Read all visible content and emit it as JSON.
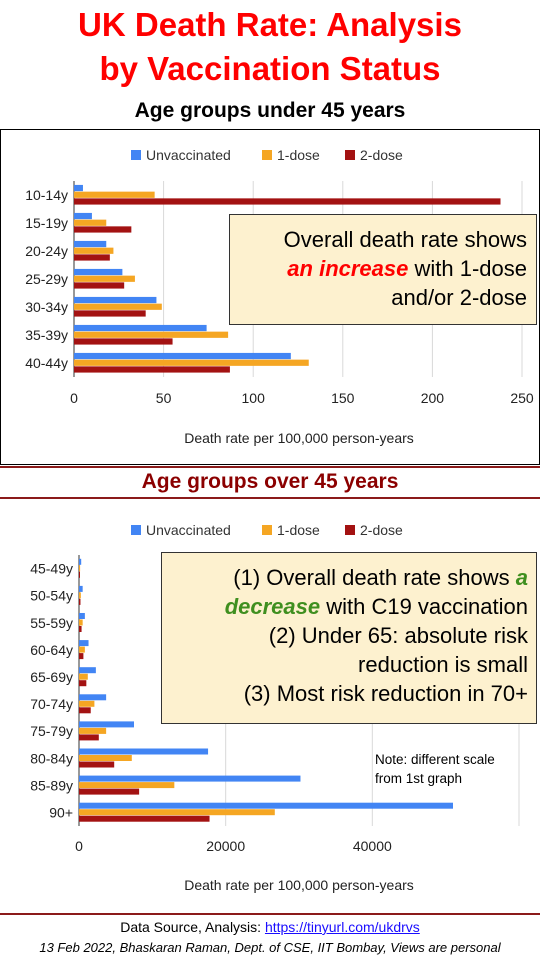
{
  "title": {
    "line1": "UK Death Rate: Analysis",
    "line2": "by Vaccination Status"
  },
  "colors": {
    "unvaccinated": "#4285f4",
    "dose1": "#f5a623",
    "dose2": "#a31212",
    "title": "#ff0000",
    "callout_bg": "#fdf1cf"
  },
  "callout1": {
    "line1": "Overall death rate shows",
    "emph": "an increase",
    "line2_rest": " with 1-dose",
    "line3": "and/or 2-dose"
  },
  "callout2": {
    "line1_pre": "(1) Overall death rate shows ",
    "emph_a": "a",
    "emph_b": "decrease",
    "line2_rest": " with C19 vaccination",
    "line3": "(2) Under 65: absolute risk",
    "line4": "reduction is small",
    "line5": "(3) Most risk reduction in 70+"
  },
  "note": {
    "line1": "Note: different scale",
    "line2": "from 1st graph"
  },
  "footer": {
    "source_label": "Data Source, Analysis: ",
    "source_link": "https://tinyurl.com/ukdrvs",
    "credit": "13 Feb 2022, Bhaskaran Raman, Dept. of CSE, IIT Bombay, Views are personal"
  },
  "chart_data": [
    {
      "type": "bar",
      "orientation": "horizontal",
      "title": "Age groups under 45 years",
      "xlabel": "Death rate per 100,000 person-years",
      "xlim": [
        0,
        250
      ],
      "xticks": [
        0,
        50,
        100,
        150,
        200,
        250
      ],
      "grid": true,
      "legend": "top",
      "categories": [
        "10-14y",
        "15-19y",
        "20-24y",
        "25-29y",
        "30-34y",
        "35-39y",
        "40-44y"
      ],
      "series": [
        {
          "name": "Unvaccinated",
          "color": "#4285f4",
          "values": [
            5,
            10,
            18,
            27,
            46,
            74,
            121
          ]
        },
        {
          "name": "1-dose",
          "color": "#f5a623",
          "values": [
            45,
            18,
            22,
            34,
            49,
            86,
            131
          ]
        },
        {
          "name": "2-dose",
          "color": "#a31212",
          "values": [
            238,
            32,
            20,
            28,
            40,
            55,
            87
          ]
        }
      ]
    },
    {
      "type": "bar",
      "orientation": "horizontal",
      "title": "Age groups over 45 years",
      "xlabel": "Death rate per 100,000 person-years",
      "xlim": [
        0,
        60000
      ],
      "xticks": [
        0,
        20000,
        40000
      ],
      "grid": true,
      "legend": "top",
      "categories": [
        "45-49y",
        "50-54y",
        "55-59y",
        "60-64y",
        "65-69y",
        "70-74y",
        "75-79y",
        "80-84y",
        "85-89y",
        "90+"
      ],
      "series": [
        {
          "name": "Unvaccinated",
          "color": "#4285f4",
          "values": [
            300,
            500,
            800,
            1300,
            2300,
            3700,
            7500,
            17600,
            30200,
            51000
          ]
        },
        {
          "name": "1-dose",
          "color": "#f5a623",
          "values": [
            150,
            250,
            500,
            800,
            1200,
            2100,
            3700,
            7200,
            13000,
            26700
          ]
        },
        {
          "name": "2-dose",
          "color": "#a31212",
          "values": [
            100,
            200,
            350,
            600,
            1000,
            1600,
            2700,
            4800,
            8200,
            17800
          ]
        }
      ]
    }
  ]
}
